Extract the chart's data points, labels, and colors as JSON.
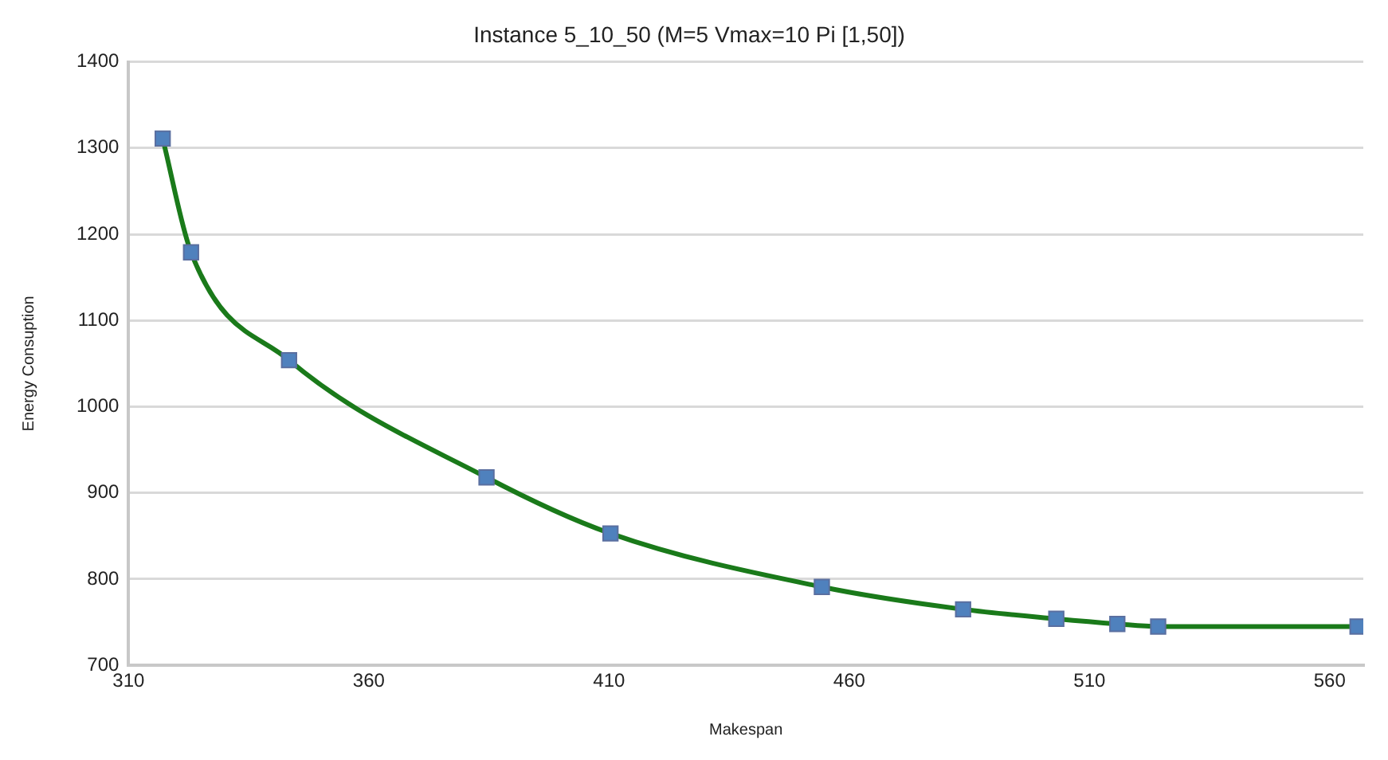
{
  "chart_data": {
    "type": "line",
    "title": "Instance 5_10_50 (M=5 Vmax=10 Pi [1,50])",
    "xlabel": "Makespan",
    "ylabel": "Energy Consuption",
    "x": [
      317.1,
      323,
      343.4,
      384.5,
      410.3,
      454.3,
      483.7,
      503.1,
      515.8,
      524.3,
      565.8
    ],
    "series": [
      {
        "color": "#1a7a1a",
        "values": [
          1311,
          1179,
          1054,
          918,
          853,
          791,
          765,
          754,
          748,
          745,
          745
        ]
      }
    ],
    "xlim": [
      310,
      567
    ],
    "xticks": [
      310,
      360,
      410,
      460,
      510,
      560
    ],
    "ylim": [
      700,
      1400
    ],
    "yticks": [
      700,
      800,
      900,
      1000,
      1100,
      1200,
      1300,
      1400
    ],
    "grid": "y",
    "legend": false,
    "marker": "square",
    "line_style": "solid"
  }
}
